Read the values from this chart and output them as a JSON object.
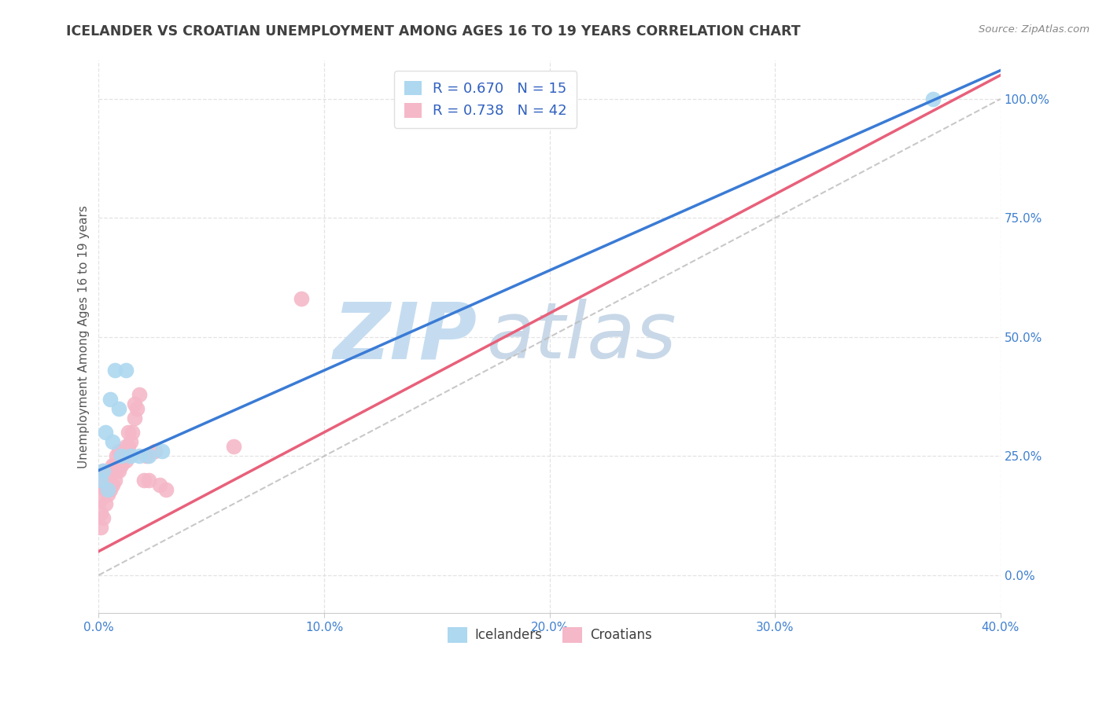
{
  "title": "ICELANDER VS CROATIAN UNEMPLOYMENT AMONG AGES 16 TO 19 YEARS CORRELATION CHART",
  "source": "Source: ZipAtlas.com",
  "ylabel": "Unemployment Among Ages 16 to 19 years",
  "xlim": [
    0.0,
    0.4
  ],
  "ylim": [
    -0.08,
    1.08
  ],
  "xticks": [
    0.0,
    0.1,
    0.2,
    0.3,
    0.4
  ],
  "yticks_right": [
    0.0,
    0.25,
    0.5,
    0.75,
    1.0
  ],
  "icelanders_x": [
    0.001,
    0.002,
    0.003,
    0.004,
    0.005,
    0.006,
    0.007,
    0.009,
    0.01,
    0.012,
    0.014,
    0.018,
    0.022,
    0.028,
    0.37
  ],
  "icelanders_y": [
    0.2,
    0.22,
    0.3,
    0.18,
    0.37,
    0.28,
    0.43,
    0.35,
    0.25,
    0.43,
    0.25,
    0.25,
    0.25,
    0.26,
    1.0
  ],
  "croatians_x": [
    0.001,
    0.001,
    0.001,
    0.002,
    0.002,
    0.002,
    0.003,
    0.003,
    0.003,
    0.004,
    0.004,
    0.005,
    0.005,
    0.006,
    0.006,
    0.007,
    0.007,
    0.008,
    0.008,
    0.009,
    0.009,
    0.01,
    0.01,
    0.011,
    0.012,
    0.012,
    0.013,
    0.013,
    0.014,
    0.015,
    0.016,
    0.016,
    0.017,
    0.018,
    0.02,
    0.021,
    0.022,
    0.025,
    0.027,
    0.03,
    0.06,
    0.09
  ],
  "croatians_y": [
    0.1,
    0.13,
    0.16,
    0.12,
    0.19,
    0.22,
    0.15,
    0.18,
    0.21,
    0.17,
    0.2,
    0.18,
    0.22,
    0.19,
    0.23,
    0.2,
    0.23,
    0.22,
    0.25,
    0.22,
    0.26,
    0.23,
    0.26,
    0.25,
    0.27,
    0.24,
    0.27,
    0.3,
    0.28,
    0.3,
    0.33,
    0.36,
    0.35,
    0.38,
    0.2,
    0.25,
    0.2,
    0.26,
    0.19,
    0.18,
    0.27,
    0.58
  ],
  "icelander_R": "0.670",
  "icelander_N": "15",
  "croatian_R": "0.738",
  "croatian_N": "42",
  "blue_dot_color": "#ADD8F0",
  "blue_line_color": "#3A7BD5",
  "pink_dot_color": "#F5B8C8",
  "pink_line_color": "#E8607A",
  "diag_color": "#BBBBBB",
  "watermark_zip_color": "#C5DCF0",
  "watermark_atlas_color": "#C8D8E8",
  "title_color": "#404040",
  "axis_tick_color": "#4080D0",
  "ylabel_color": "#555555",
  "legend_text_color": "#3060C0",
  "grid_color": "#DDDDDD",
  "bg_color": "#FFFFFF",
  "blue_line_intercept": 0.22,
  "blue_line_slope": 2.1,
  "pink_line_intercept": 0.05,
  "pink_line_slope": 2.5
}
